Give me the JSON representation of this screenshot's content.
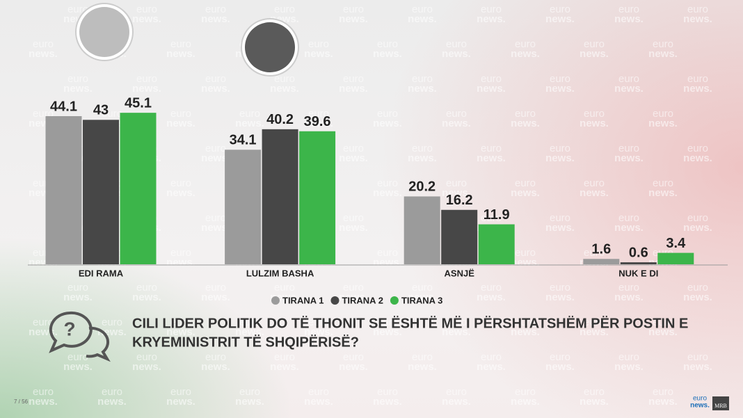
{
  "chart_data": {
    "type": "bar",
    "categories": [
      "EDI RAMA",
      "LULZIM BASHA",
      "ASNJË",
      "NUK E DI"
    ],
    "series": [
      {
        "name": "TIRANA 1",
        "color": "#9b9b9b",
        "values": [
          44.1,
          34.1,
          20.2,
          1.6
        ]
      },
      {
        "name": "TIRANA 2",
        "color": "#474747",
        "values": [
          43,
          40.2,
          16.2,
          0.6
        ]
      },
      {
        "name": "TIRANA 3",
        "color": "#3cb54a",
        "values": [
          45.1,
          39.6,
          11.9,
          3.4
        ]
      }
    ],
    "question": [
      "CILI LIDER POLITIK DO TË THONIT SE ËSHTË MË I PËRSHTATSHËM PËR POSTIN E",
      "KRYEMINISTRIT TË SHQIPËRISË?"
    ],
    "page_number": "7 / 56",
    "watermark": [
      "euro",
      "news."
    ],
    "logo": [
      "euro",
      "news.",
      "MRB"
    ]
  }
}
